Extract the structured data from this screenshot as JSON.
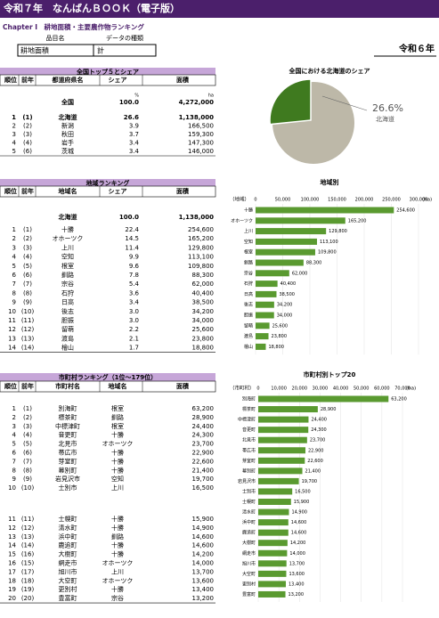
{
  "header": {
    "title": "令和７年　なんばんＢＯＯＫ（電子版）",
    "chapter": "Chapter Ⅰ　耕地面積・主要農作物ランキング",
    "year": "令和６年"
  },
  "selector": {
    "labels": [
      "品目名",
      "データの種類"
    ],
    "values": [
      "耕地面積",
      "計"
    ]
  },
  "tables": [
    {
      "title": "全国トップ５とシェア",
      "columns": [
        "順位",
        "前年",
        "都道府県名",
        "シェア",
        "面積"
      ],
      "units": [
        "%",
        "ha"
      ],
      "total": [
        "全国",
        "100.0",
        "4,272,000"
      ],
      "rows": [
        [
          "1",
          "(1)",
          "北海道",
          "26.6",
          "1,138,000"
        ],
        [
          "2",
          "(2)",
          "新潟",
          "3.9",
          "166,500"
        ],
        [
          "3",
          "(3)",
          "秋田",
          "3.7",
          "159,300"
        ],
        [
          "4",
          "(4)",
          "岩手",
          "3.4",
          "147,300"
        ],
        [
          "5",
          "(6)",
          "茨城",
          "3.4",
          "146,000"
        ]
      ]
    },
    {
      "title": "地域ランキング",
      "columns": [
        "順位",
        "前年",
        "地域名",
        "シェア",
        "面積"
      ],
      "total": [
        "北海道",
        "100.0",
        "1,138,000"
      ],
      "rows": [
        [
          "1",
          "(1)",
          "十勝",
          "22.4",
          "254,600"
        ],
        [
          "2",
          "(2)",
          "オホーツク",
          "14.5",
          "165,200"
        ],
        [
          "3",
          "(3)",
          "上川",
          "11.4",
          "129,800"
        ],
        [
          "4",
          "(4)",
          "空知",
          "9.9",
          "113,100"
        ],
        [
          "5",
          "(5)",
          "根室",
          "9.6",
          "109,800"
        ],
        [
          "6",
          "(6)",
          "釧路",
          "7.8",
          "88,300"
        ],
        [
          "7",
          "(7)",
          "宗谷",
          "5.4",
          "62,000"
        ],
        [
          "8",
          "(8)",
          "石狩",
          "3.6",
          "40,400"
        ],
        [
          "9",
          "(9)",
          "日高",
          "3.4",
          "38,500"
        ],
        [
          "10",
          "(10)",
          "後志",
          "3.0",
          "34,200"
        ],
        [
          "11",
          "(11)",
          "胆振",
          "3.0",
          "34,000"
        ],
        [
          "12",
          "(12)",
          "留萌",
          "2.2",
          "25,600"
        ],
        [
          "13",
          "(13)",
          "渡島",
          "2.1",
          "23,800"
        ],
        [
          "14",
          "(14)",
          "檜山",
          "1.7",
          "18,800"
        ]
      ]
    },
    {
      "title": "市町村ランキング（1位～179位）",
      "columns": [
        "順位",
        "前年",
        "市町村名",
        "地域名",
        "面積"
      ],
      "rows": [
        [
          "1",
          "(1)",
          "別海町",
          "根室",
          "63,200"
        ],
        [
          "2",
          "(2)",
          "標茶町",
          "釧路",
          "28,900"
        ],
        [
          "3",
          "(3)",
          "中標津町",
          "根室",
          "24,400"
        ],
        [
          "4",
          "(4)",
          "音更町",
          "十勝",
          "24,300"
        ],
        [
          "5",
          "(5)",
          "北見市",
          "オホーツク",
          "23,700"
        ],
        [
          "6",
          "(6)",
          "帯広市",
          "十勝",
          "22,900"
        ],
        [
          "7",
          "(7)",
          "芽室町",
          "十勝",
          "22,600"
        ],
        [
          "8",
          "(8)",
          "幕別町",
          "十勝",
          "21,400"
        ],
        [
          "9",
          "(9)",
          "岩見沢市",
          "空知",
          "19,700"
        ],
        [
          "10",
          "(10)",
          "士別市",
          "上川",
          "16,500"
        ],
        [
          "11",
          "(11)",
          "士幌町",
          "十勝",
          "15,900"
        ],
        [
          "12",
          "(12)",
          "清水町",
          "十勝",
          "14,900"
        ],
        [
          "13",
          "(13)",
          "浜中町",
          "釧路",
          "14,600"
        ],
        [
          "14",
          "(14)",
          "鹿追町",
          "十勝",
          "14,600"
        ],
        [
          "15",
          "(16)",
          "大樹町",
          "十勝",
          "14,200"
        ],
        [
          "16",
          "(15)",
          "網走市",
          "オホーツク",
          "14,000"
        ],
        [
          "17",
          "(17)",
          "旭川市",
          "上川",
          "13,700"
        ],
        [
          "18",
          "(18)",
          "大空町",
          "オホーツク",
          "13,600"
        ],
        [
          "19",
          "(19)",
          "更別村",
          "十勝",
          "13,400"
        ],
        [
          "20",
          "(20)",
          "豊富町",
          "宗谷",
          "13,200"
        ]
      ]
    }
  ],
  "chart_data": [
    {
      "type": "pie",
      "title": "全国における北海道のシェア",
      "categories": [
        "北海道"
      ],
      "values": [
        26.6
      ],
      "value_labels": [
        "26.6%"
      ],
      "color": "#3f7a1f",
      "rest_color": "#bdb8a8"
    },
    {
      "type": "bar",
      "title": "地域別",
      "y_unit": "（地域）",
      "x_unit": "(ha)",
      "color": "#5a9a30",
      "categories": [
        "十勝",
        "オホーツク",
        "上川",
        "空知",
        "根室",
        "釧路",
        "宗谷",
        "石狩",
        "日高",
        "後志",
        "胆振",
        "留萌",
        "渡島",
        "檜山"
      ],
      "values": [
        254600,
        165200,
        129800,
        113100,
        109800,
        88300,
        62000,
        40400,
        38500,
        34200,
        34000,
        25600,
        23800,
        18800
      ],
      "value_labels": [
        "254,600",
        "165,200",
        "129,800",
        "113,100",
        "109,800",
        "88,300",
        "62,000",
        "40,400",
        "38,500",
        "34,200",
        "34,000",
        "25,600",
        "23,800",
        "18,800"
      ],
      "xlim": [
        0,
        300000
      ],
      "xticks": [
        0,
        {
          "value": 50000,
          "label": "50,000"
        },
        {
          "value": 100000,
          "label": "100,000"
        },
        {
          "value": 150000,
          "label": "150,000"
        },
        {
          "value": 200000,
          "label": "200,000"
        },
        {
          "value": 250000,
          "label": "250,000"
        },
        {
          "value": 300000,
          "label": "300,000"
        }
      ]
    },
    {
      "type": "bar",
      "title": "市町村別トップ20",
      "y_unit": "（市町村）",
      "x_unit": "(ha)",
      "color": "#5a9a30",
      "categories": [
        "別海町",
        "標茶町",
        "中標津町",
        "音更町",
        "北見市",
        "帯広市",
        "芽室町",
        "幕別町",
        "岩見沢市",
        "士別市",
        "士幌町",
        "清水町",
        "浜中町",
        "鹿追町",
        "大樹町",
        "網走市",
        "旭川市",
        "大空町",
        "更別村",
        "豊富町"
      ],
      "values": [
        63200,
        28900,
        24400,
        24300,
        23700,
        22900,
        22600,
        21400,
        19700,
        16500,
        15900,
        14900,
        14600,
        14600,
        14200,
        14000,
        13700,
        13600,
        13400,
        13200
      ],
      "value_labels": [
        "63,200",
        "28,900",
        "24,400",
        "24,300",
        "23,700",
        "22,900",
        "22,600",
        "21,400",
        "19,700",
        "16,500",
        "15,900",
        "14,900",
        "14,600",
        "14,600",
        "14,200",
        "14,000",
        "13,700",
        "13,600",
        "13,400",
        "13,200"
      ],
      "xlim": [
        0,
        70000
      ],
      "xticks": [
        0,
        {
          "value": 10000,
          "label": "10,000"
        },
        {
          "value": 20000,
          "label": "20,000"
        },
        {
          "value": 30000,
          "label": "30,000"
        },
        {
          "value": 40000,
          "label": "40,000"
        },
        {
          "value": 50000,
          "label": "50,000"
        },
        {
          "value": 60000,
          "label": "60,000"
        },
        {
          "value": 70000,
          "label": "70,000"
        }
      ]
    }
  ]
}
